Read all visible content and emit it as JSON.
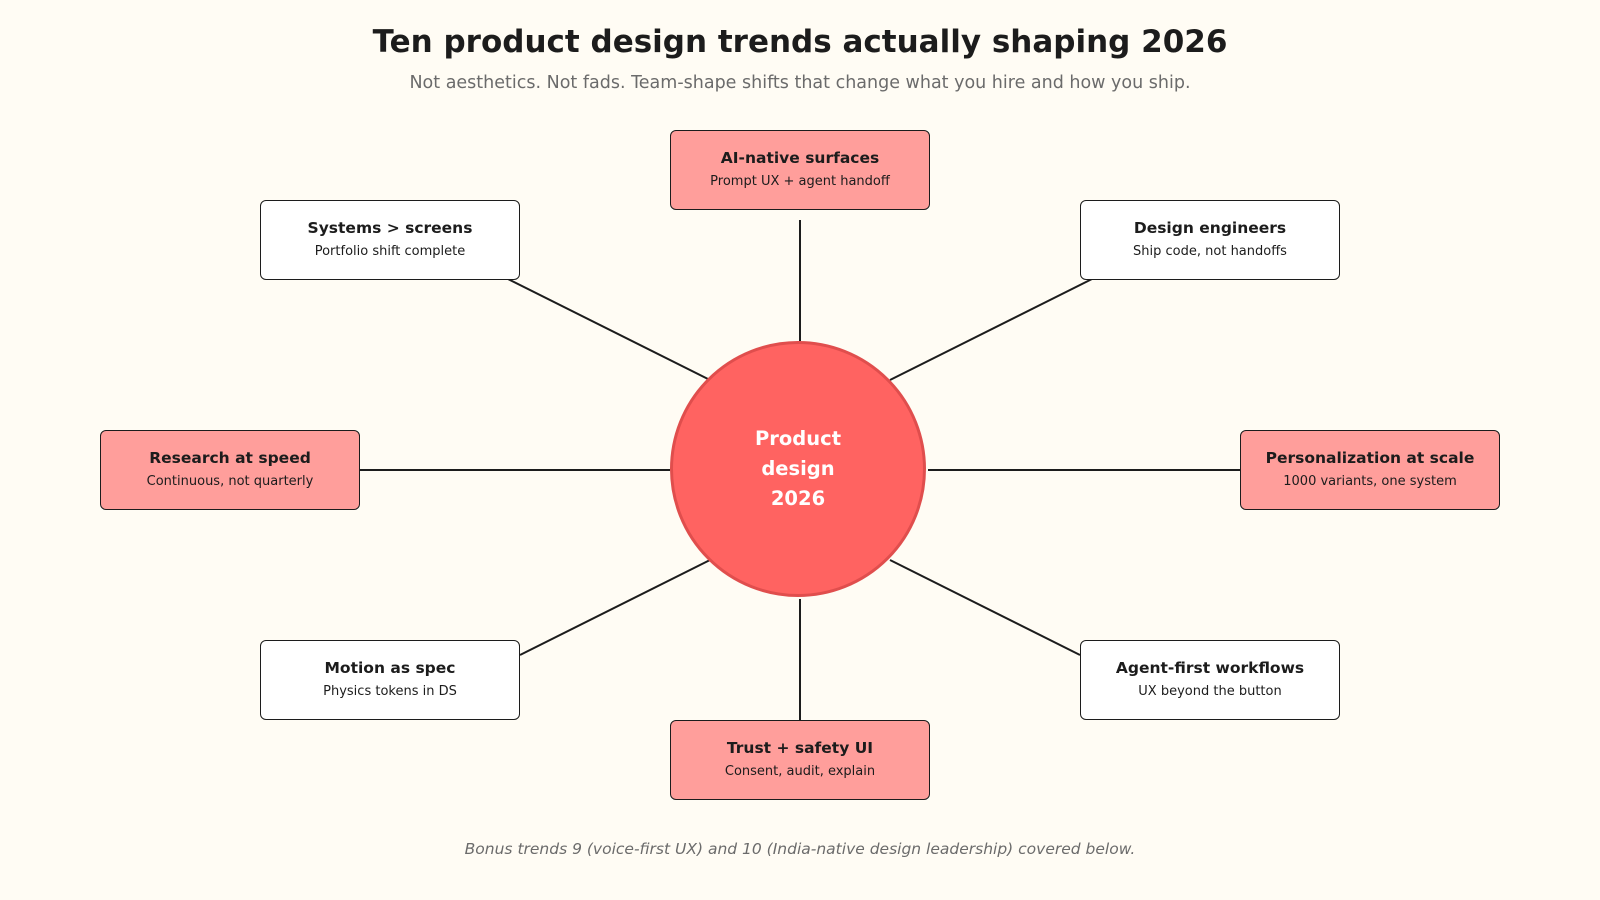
{
  "header": {
    "title": "Ten product design trends actually shaping 2026",
    "subtitle": "Not aesthetics. Not fads. Team-shape shifts that change what you hire and how you ship."
  },
  "hub": {
    "line1": "Product",
    "line2": "design",
    "line3": "2026",
    "color": "#ff6361"
  },
  "colors": {
    "accent_box": "#ff9e9b",
    "plain_box": "#ffffff",
    "connector": "#1c1c1c"
  },
  "trends": [
    {
      "title": "AI-native surfaces",
      "subtitle": "Prompt UX + agent handoff",
      "style": "accent"
    },
    {
      "title": "Design engineers",
      "subtitle": "Ship code, not handoffs",
      "style": "plain"
    },
    {
      "title": "Personalization at scale",
      "subtitle": "1000 variants, one system",
      "style": "accent"
    },
    {
      "title": "Agent-first workflows",
      "subtitle": "UX beyond the button",
      "style": "plain"
    },
    {
      "title": "Trust + safety UI",
      "subtitle": "Consent, audit, explain",
      "style": "accent"
    },
    {
      "title": "Motion as spec",
      "subtitle": "Physics tokens in DS",
      "style": "plain"
    },
    {
      "title": "Research at speed",
      "subtitle": "Continuous, not quarterly",
      "style": "accent"
    },
    {
      "title": "Systems > screens",
      "subtitle": "Portfolio shift complete",
      "style": "plain"
    }
  ],
  "footer": {
    "note": "Bonus trends 9 (voice-first UX) and 10 (India-native design leadership) covered below."
  }
}
